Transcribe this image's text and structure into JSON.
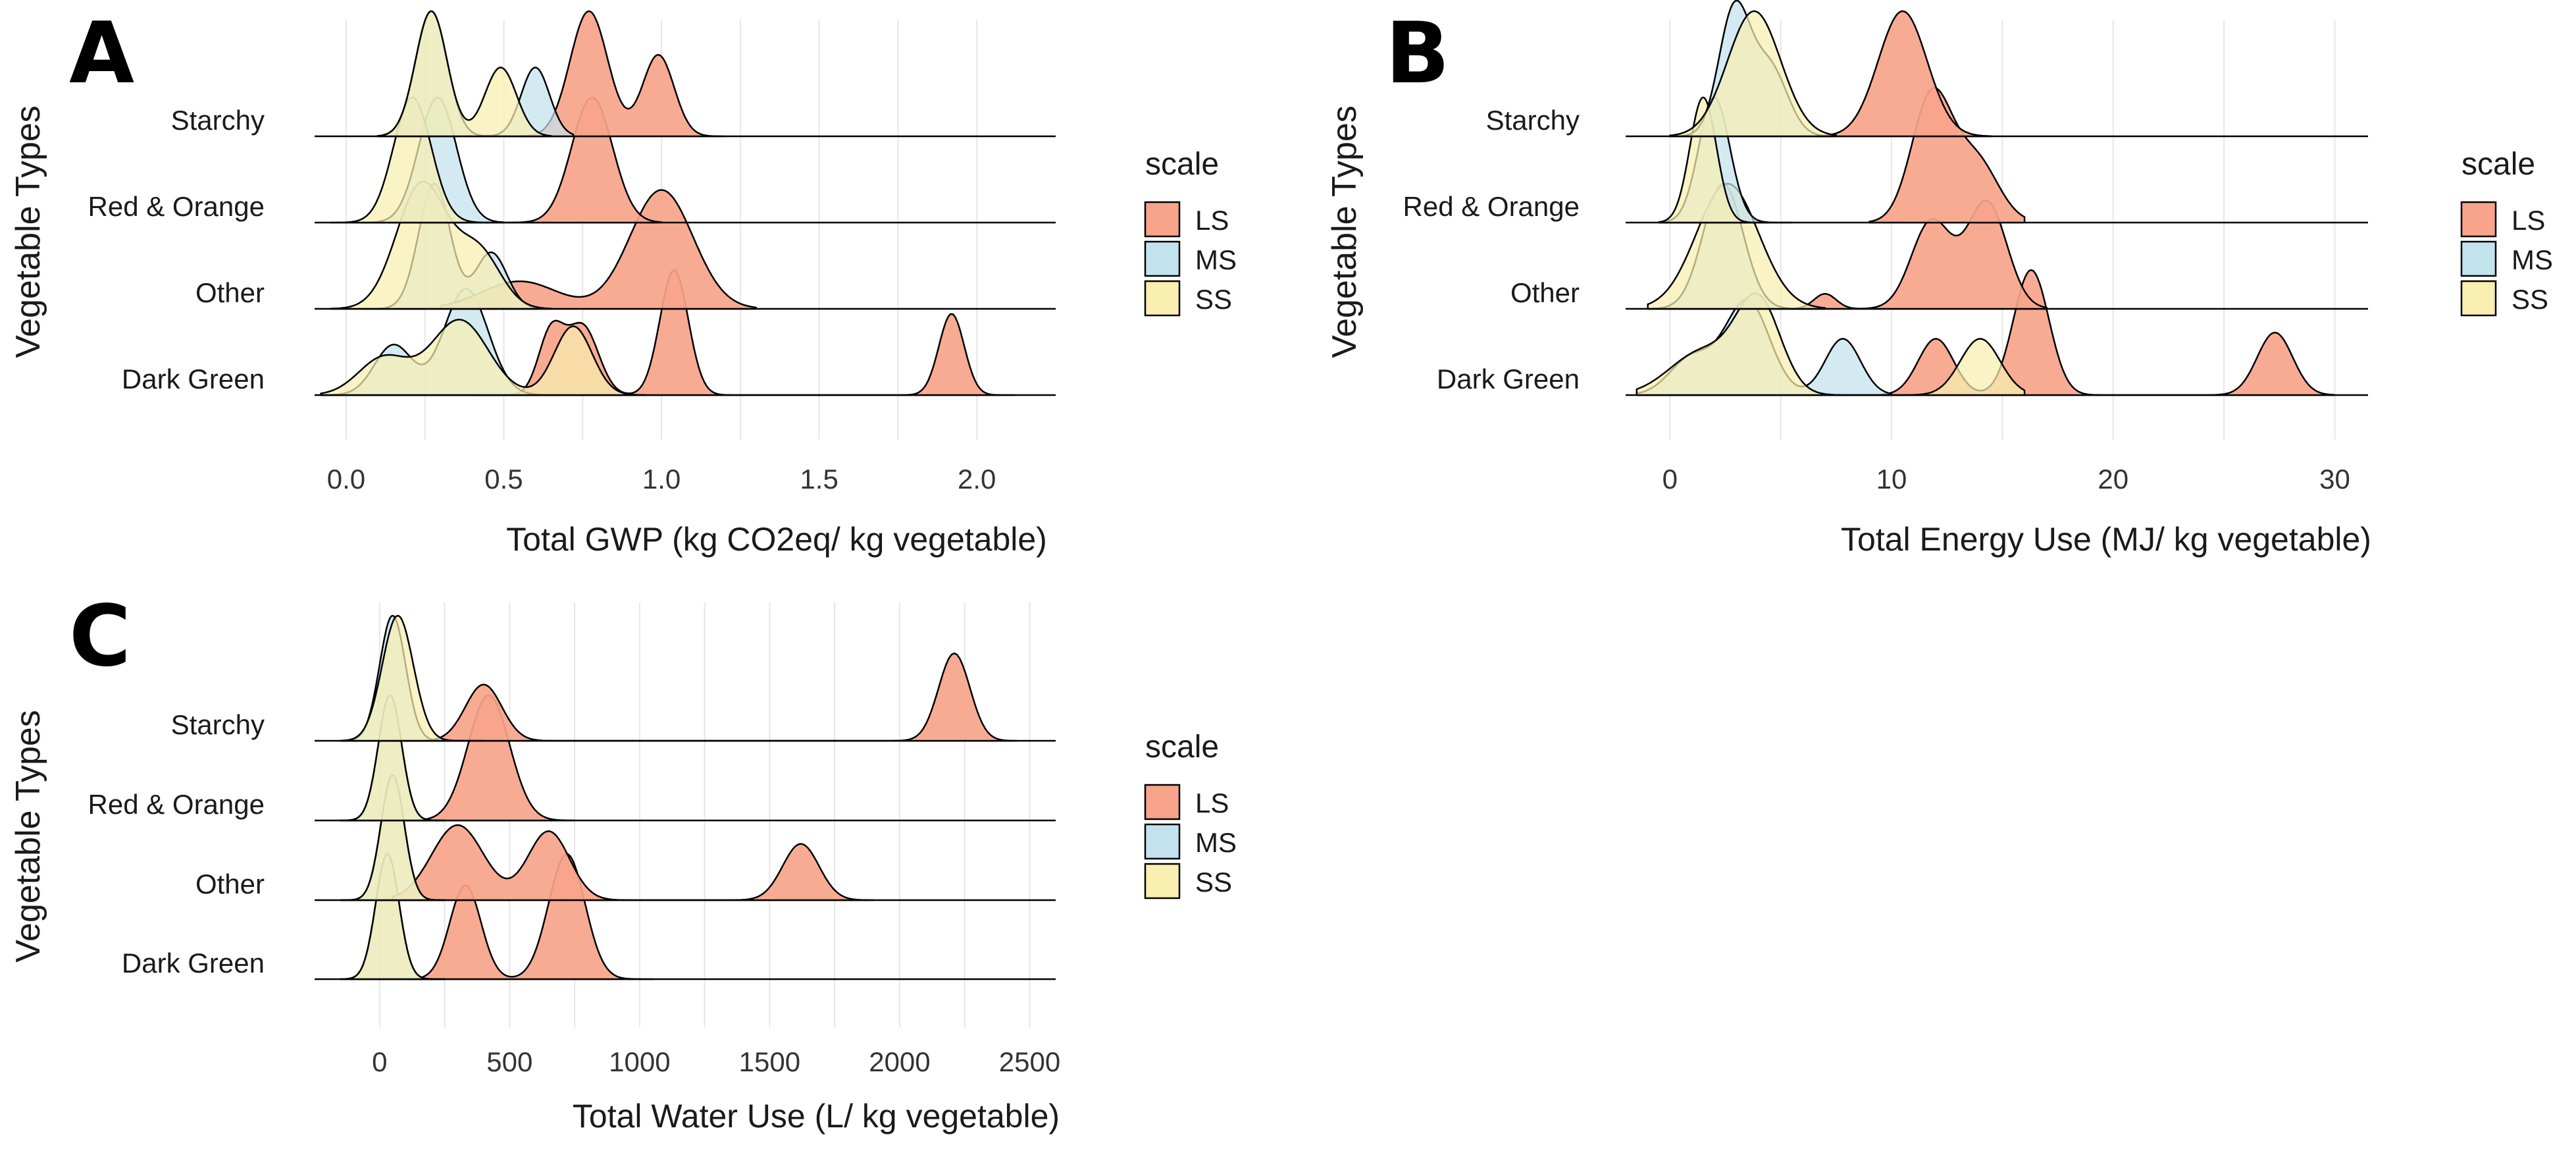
{
  "figure": {
    "legend_title": "scale",
    "legend_labels": [
      "LS",
      "MS",
      "SS"
    ]
  },
  "colors": {
    "LS": "#f7a48a",
    "MS": "#c2e2ee",
    "SS": "#f8efb0"
  },
  "chart_data": [
    {
      "type": "ridgeline",
      "panel": "A",
      "xlabel": "Total GWP (kg CO2eq/ kg vegetable)",
      "ylabel": "Vegetable Types",
      "xlim": [
        -0.1,
        2.25
      ],
      "xticks": [
        0.0,
        0.5,
        1.0,
        1.5,
        2.0
      ],
      "xtick_labels": [
        "0.0",
        "0.5",
        "1.0",
        "1.5",
        "2.0"
      ],
      "categories": [
        "Dark Green",
        "Other",
        "Red & Orange",
        "Starchy"
      ],
      "series": [
        {
          "category": "Dark Green",
          "scale": "LS",
          "range": [
            0.4,
            2.12
          ],
          "peaks": [
            [
              0.65,
              0.04,
              0.5
            ],
            [
              0.75,
              0.05,
              0.55
            ],
            [
              1.04,
              0.045,
              1.0
            ],
            [
              1.92,
              0.04,
              0.65
            ]
          ]
        },
        {
          "category": "Dark Green",
          "scale": "MS",
          "range": [
            -0.08,
            0.75
          ],
          "peaks": [
            [
              0.15,
              0.06,
              0.4
            ],
            [
              0.38,
              0.07,
              0.85
            ]
          ]
        },
        {
          "category": "Dark Green",
          "scale": "SS",
          "range": [
            -0.08,
            0.95
          ],
          "peaks": [
            [
              0.12,
              0.08,
              0.3
            ],
            [
              0.36,
              0.09,
              0.6
            ],
            [
              0.72,
              0.06,
              0.55
            ]
          ]
        },
        {
          "category": "Other",
          "scale": "LS",
          "range": [
            0.3,
            1.3
          ],
          "peaks": [
            [
              0.55,
              0.12,
              0.22
            ],
            [
              1.0,
              0.1,
              0.95
            ]
          ]
        },
        {
          "category": "Other",
          "scale": "MS",
          "range": [
            0.05,
            0.62
          ],
          "peaks": [
            [
              0.28,
              0.05,
              1.0
            ],
            [
              0.46,
              0.05,
              0.45
            ]
          ]
        },
        {
          "category": "Other",
          "scale": "SS",
          "range": [
            -0.05,
            0.65
          ],
          "peaks": [
            [
              0.24,
              0.08,
              1.0
            ],
            [
              0.42,
              0.07,
              0.45
            ]
          ]
        },
        {
          "category": "Red & Orange",
          "scale": "LS",
          "range": [
            0.5,
            1.0
          ],
          "peaks": [
            [
              0.78,
              0.065,
              1.0
            ]
          ]
        },
        {
          "category": "Red & Orange",
          "scale": "MS",
          "range": [
            0.05,
            0.5
          ],
          "peaks": [
            [
              0.29,
              0.06,
              1.0
            ]
          ]
        },
        {
          "category": "Red & Orange",
          "scale": "SS",
          "range": [
            -0.05,
            0.45
          ],
          "peaks": [
            [
              0.21,
              0.06,
              1.0
            ]
          ]
        },
        {
          "category": "Starchy",
          "scale": "LS",
          "range": [
            0.55,
            1.2
          ],
          "peaks": [
            [
              0.77,
              0.06,
              1.0
            ],
            [
              0.99,
              0.05,
              0.65
            ]
          ]
        },
        {
          "category": "Starchy",
          "scale": "MS",
          "range": [
            0.1,
            0.72
          ],
          "peaks": [
            [
              0.27,
              0.05,
              1.0
            ],
            [
              0.6,
              0.045,
              0.55
            ]
          ]
        },
        {
          "category": "Starchy",
          "scale": "SS",
          "range": [
            0.1,
            0.65
          ],
          "peaks": [
            [
              0.27,
              0.05,
              1.0
            ],
            [
              0.49,
              0.05,
              0.55
            ]
          ]
        }
      ]
    },
    {
      "type": "ridgeline",
      "panel": "B",
      "xlabel": "Total Energy Use (MJ/ kg vegetable)",
      "ylabel": "Vegetable Types",
      "xlim": [
        -2,
        31.5
      ],
      "xticks": [
        0,
        10,
        20,
        30
      ],
      "xtick_labels": [
        "0",
        "10",
        "20",
        "30"
      ],
      "categories": [
        "Dark Green",
        "Other",
        "Red & Orange",
        "Starchy"
      ],
      "series": [
        {
          "category": "Dark Green",
          "scale": "LS",
          "range": [
            9.5,
            30
          ],
          "peaks": [
            [
              12,
              0.8,
              0.45
            ],
            [
              16.3,
              0.8,
              1.0
            ],
            [
              27.3,
              0.8,
              0.5
            ]
          ]
        },
        {
          "category": "Dark Green",
          "scale": "MS",
          "range": [
            -1.5,
            10
          ],
          "peaks": [
            [
              1,
              1.0,
              0.3
            ],
            [
              3.5,
              1.0,
              0.75
            ],
            [
              7.8,
              0.8,
              0.45
            ]
          ]
        },
        {
          "category": "Dark Green",
          "scale": "SS",
          "range": [
            -1.5,
            16
          ],
          "peaks": [
            [
              1.5,
              1.5,
              0.35
            ],
            [
              4,
              1.0,
              0.72
            ],
            [
              14,
              0.9,
              0.45
            ]
          ]
        },
        {
          "category": "Other",
          "scale": "LS",
          "range": [
            5.5,
            17
          ],
          "peaks": [
            [
              7,
              0.5,
              0.12
            ],
            [
              11.8,
              0.9,
              0.7
            ],
            [
              14.3,
              0.9,
              0.85
            ]
          ]
        },
        {
          "category": "Other",
          "scale": "MS",
          "range": [
            -1,
            7
          ],
          "peaks": [
            [
              2.4,
              0.9,
              1.0
            ]
          ]
        },
        {
          "category": "Other",
          "scale": "SS",
          "range": [
            -1,
            7
          ],
          "peaks": [
            [
              2.6,
              1.4,
              1.0
            ]
          ]
        },
        {
          "category": "Red & Orange",
          "scale": "LS",
          "range": [
            9,
            16
          ],
          "peaks": [
            [
              11.8,
              0.9,
              1.0
            ],
            [
              13.8,
              1.0,
              0.5
            ]
          ]
        },
        {
          "category": "Red & Orange",
          "scale": "MS",
          "range": [
            -0.5,
            5.5
          ],
          "peaks": [
            [
              2,
              0.7,
              1.0
            ]
          ]
        },
        {
          "category": "Red & Orange",
          "scale": "SS",
          "range": [
            -0.5,
            4.5
          ],
          "peaks": [
            [
              1.5,
              0.6,
              1.0
            ]
          ]
        },
        {
          "category": "Starchy",
          "scale": "LS",
          "range": [
            6.5,
            14.5
          ],
          "peaks": [
            [
              10.5,
              1.1,
              1.0
            ]
          ]
        },
        {
          "category": "Starchy",
          "scale": "MS",
          "range": [
            0,
            7.5
          ],
          "peaks": [
            [
              2.9,
              0.7,
              1.0
            ],
            [
              4.5,
              0.8,
              0.55
            ]
          ]
        },
        {
          "category": "Starchy",
          "scale": "SS",
          "range": [
            0,
            7.5
          ],
          "peaks": [
            [
              3.8,
              1.2,
              1.0
            ]
          ]
        }
      ]
    },
    {
      "type": "ridgeline",
      "panel": "C",
      "xlabel": "Total Water Use (L/ kg vegetable)",
      "ylabel": "Vegetable Types",
      "xlim": [
        -250,
        2600
      ],
      "xticks": [
        0,
        500,
        1000,
        1500,
        2000,
        2500
      ],
      "xtick_labels": [
        "0",
        "500",
        "1000",
        "1500",
        "2000",
        "2500"
      ],
      "categories": [
        "Dark Green",
        "Other",
        "Red & Orange",
        "Starchy"
      ],
      "series": [
        {
          "category": "Dark Green",
          "scale": "LS",
          "range": [
            100,
            1050
          ],
          "peaks": [
            [
              330,
              60,
              0.75
            ],
            [
              720,
              70,
              1.0
            ]
          ]
        },
        {
          "category": "Dark Green",
          "scale": "MS",
          "range": [
            -150,
            250
          ],
          "peaks": [
            [
              30,
              45,
              1.0
            ]
          ]
        },
        {
          "category": "Dark Green",
          "scale": "SS",
          "range": [
            -150,
            250
          ],
          "peaks": [
            [
              30,
              45,
              1.0
            ]
          ]
        },
        {
          "category": "Other",
          "scale": "LS",
          "range": [
            50,
            1900
          ],
          "peaks": [
            [
              300,
              100,
              0.6
            ],
            [
              650,
              80,
              0.55
            ],
            [
              1620,
              70,
              0.45
            ]
          ]
        },
        {
          "category": "Other",
          "scale": "MS",
          "range": [
            -150,
            250
          ],
          "peaks": [
            [
              50,
              45,
              1.0
            ]
          ]
        },
        {
          "category": "Other",
          "scale": "SS",
          "range": [
            -150,
            250
          ],
          "peaks": [
            [
              50,
              45,
              1.0
            ]
          ]
        },
        {
          "category": "Red & Orange",
          "scale": "LS",
          "range": [
            100,
            750
          ],
          "peaks": [
            [
              420,
              80,
              1.0
            ]
          ]
        },
        {
          "category": "Red & Orange",
          "scale": "MS",
          "range": [
            -150,
            250
          ],
          "peaks": [
            [
              40,
              45,
              1.0
            ]
          ]
        },
        {
          "category": "Red & Orange",
          "scale": "SS",
          "range": [
            -150,
            250
          ],
          "peaks": [
            [
              40,
              45,
              1.0
            ]
          ]
        },
        {
          "category": "Starchy",
          "scale": "LS",
          "range": [
            50,
            2450
          ],
          "peaks": [
            [
              400,
              70,
              0.45
            ],
            [
              2210,
              60,
              0.7
            ]
          ]
        },
        {
          "category": "Starchy",
          "scale": "MS",
          "range": [
            -150,
            350
          ],
          "peaks": [
            [
              50,
              50,
              1.0
            ]
          ]
        },
        {
          "category": "Starchy",
          "scale": "SS",
          "range": [
            -150,
            400
          ],
          "peaks": [
            [
              70,
              60,
              1.0
            ]
          ]
        }
      ]
    }
  ]
}
